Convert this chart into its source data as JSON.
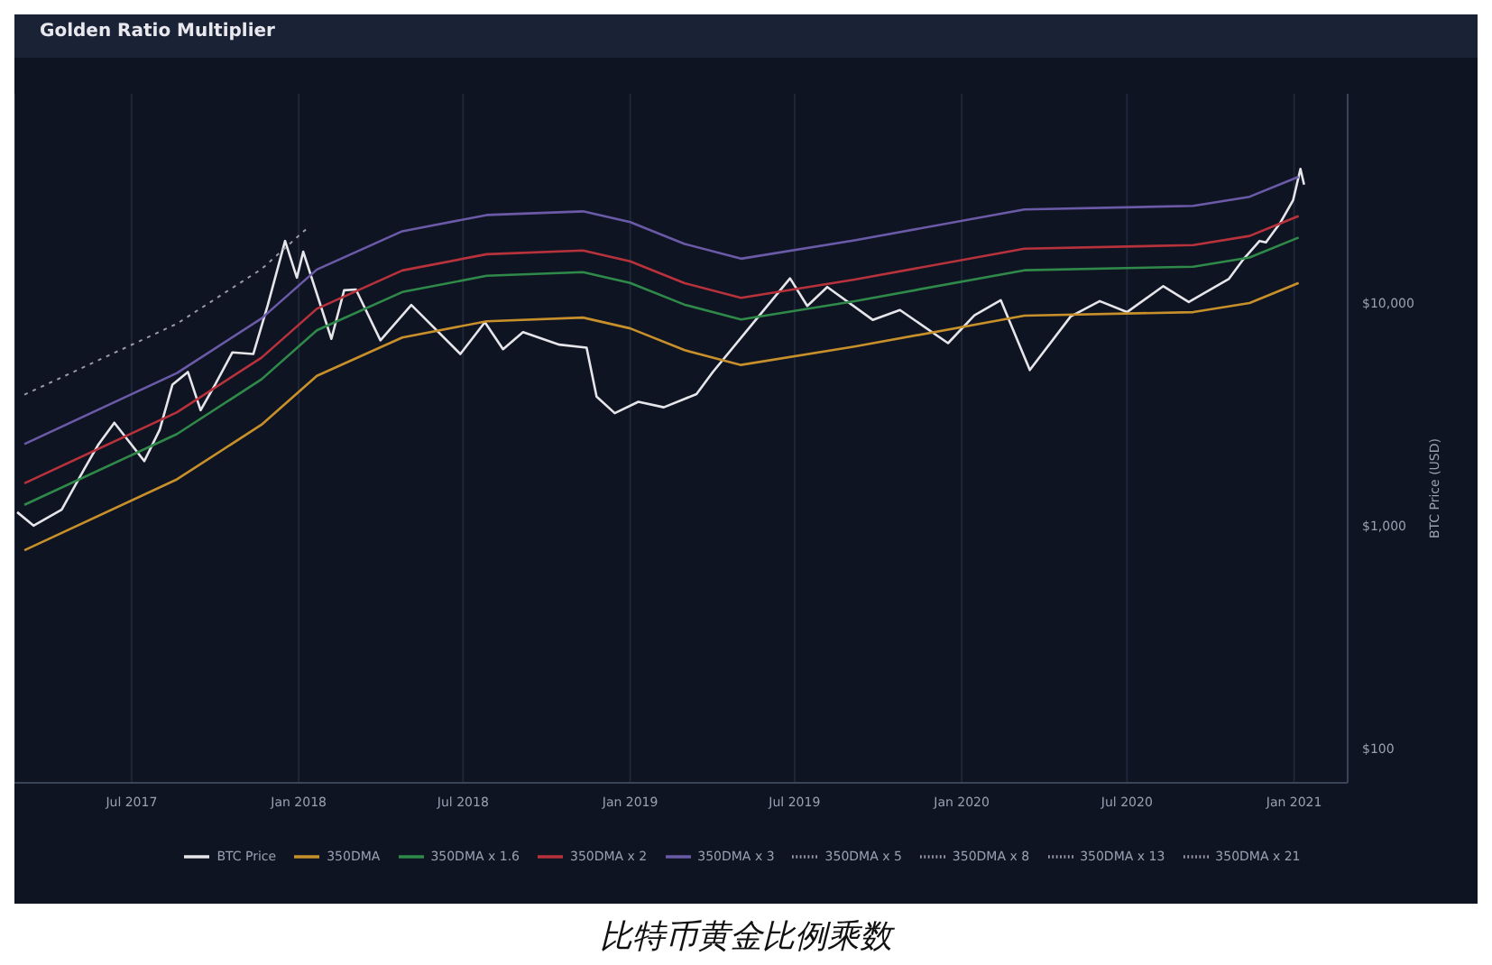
{
  "chart_data": {
    "type": "line",
    "title": "Golden Ratio Multiplier",
    "ylabel": "BTC Price (USD)",
    "log": "y",
    "grid": "x",
    "legend": "bottom",
    "marker": "none",
    "xlim": [
      "2017-02-22",
      "2021-03-01"
    ],
    "xticks": [
      {
        "value": "2017-07",
        "label": "Jul 2017"
      },
      {
        "value": "2018-01",
        "label": "Jan 2018"
      },
      {
        "value": "2018-07",
        "label": "Jul 2018"
      },
      {
        "value": "2019-01",
        "label": "Jan 2019"
      },
      {
        "value": "2019-07",
        "label": "Jul 2019"
      },
      {
        "value": "2020-01",
        "label": "Jan 2020"
      },
      {
        "value": "2020-07",
        "label": "Jul 2020"
      },
      {
        "value": "2021-01",
        "label": "Jan 2021"
      }
    ],
    "ylim": [
      70,
      87000
    ],
    "yticks": [
      {
        "value": 100,
        "label": "$100"
      },
      {
        "value": 1000,
        "label": "$1,000"
      },
      {
        "value": 10000,
        "label": "$10,000"
      }
    ],
    "annotations": [
      "比特币黄金比例乘数"
    ],
    "series": [
      {
        "name": "BTC Price",
        "color": "#e6e6ea",
        "line_style": "solid",
        "x": [
          "2017-02-25",
          "2017-03-15",
          "2017-04-15",
          "2017-05-10",
          "2017-05-25",
          "2017-06-12",
          "2017-07-15",
          "2017-08-01",
          "2017-08-15",
          "2017-09-01",
          "2017-09-15",
          "2017-10-01",
          "2017-10-20",
          "2017-11-12",
          "2017-11-28",
          "2017-12-17",
          "2017-12-30",
          "2018-01-06",
          "2018-02-06",
          "2018-02-20",
          "2018-03-05",
          "2018-04-01",
          "2018-05-05",
          "2018-06-28",
          "2018-07-25",
          "2018-08-14",
          "2018-09-05",
          "2018-10-15",
          "2018-11-14",
          "2018-11-25",
          "2018-12-15",
          "2019-01-10",
          "2019-02-07",
          "2019-03-15",
          "2019-04-02",
          "2019-05-15",
          "2019-06-26",
          "2019-07-15",
          "2019-08-06",
          "2019-09-25",
          "2019-10-25",
          "2019-12-17",
          "2020-01-15",
          "2020-02-13",
          "2020-03-16",
          "2020-04-30",
          "2020-06-01",
          "2020-07-01",
          "2020-08-10",
          "2020-09-07",
          "2020-10-21",
          "2020-11-05",
          "2020-11-24",
          "2020-12-01",
          "2020-12-17",
          "2020-12-31",
          "2021-01-08",
          "2021-01-12"
        ],
        "values": [
          1150,
          1000,
          1180,
          1800,
          2300,
          2900,
          1950,
          2700,
          4300,
          4900,
          3300,
          4300,
          6000,
          5900,
          9800,
          19000,
          13000,
          17000,
          6900,
          11400,
          11500,
          6800,
          9800,
          5900,
          8200,
          6200,
          7400,
          6500,
          6300,
          3800,
          3200,
          3600,
          3400,
          3900,
          4900,
          8000,
          12900,
          9700,
          11800,
          8400,
          9300,
          6600,
          8800,
          10300,
          5000,
          8700,
          10200,
          9100,
          11900,
          10100,
          12800,
          15500,
          19000,
          18700,
          23000,
          29000,
          40000,
          34000
        ]
      },
      {
        "name": "350DMA",
        "color": "#c8902a",
        "line_style": "solid",
        "x": [
          "2017-03-05",
          "2017-08-20",
          "2017-11-21",
          "2018-01-21",
          "2018-04-25",
          "2018-07-27",
          "2018-11-10",
          "2019-01-01",
          "2019-03-02",
          "2019-05-03",
          "2019-09-05",
          "2020-03-10",
          "2020-09-12",
          "2020-11-13",
          "2021-01-06"
        ],
        "values": [
          775,
          1615,
          2840,
          4710,
          7000,
          8280,
          8600,
          7690,
          6140,
          5270,
          6370,
          8770,
          9100,
          10000,
          12300
        ]
      },
      {
        "name": "350DMA x 1.6",
        "color": "#2f8a4a",
        "line_style": "solid",
        "x": [
          "2017-03-05",
          "2017-08-20",
          "2017-11-21",
          "2018-01-21",
          "2018-04-25",
          "2018-07-27",
          "2018-11-10",
          "2019-01-01",
          "2019-03-02",
          "2019-05-03",
          "2019-09-05",
          "2020-03-10",
          "2020-09-12",
          "2020-11-13",
          "2021-01-06"
        ],
        "values": [
          1240,
          2580,
          4540,
          7540,
          11200,
          13250,
          13760,
          12300,
          9820,
          8430,
          10190,
          14030,
          14560,
          16000,
          19680
        ]
      },
      {
        "name": "350DMA x 2",
        "color": "#b8323c",
        "line_style": "solid",
        "x": [
          "2017-03-05",
          "2017-08-20",
          "2017-11-21",
          "2018-01-21",
          "2018-04-25",
          "2018-07-27",
          "2018-11-10",
          "2019-01-01",
          "2019-03-02",
          "2019-05-03",
          "2019-09-05",
          "2020-03-10",
          "2020-09-12",
          "2020-11-13",
          "2021-01-06"
        ],
        "values": [
          1550,
          3230,
          5680,
          9420,
          14000,
          16560,
          17200,
          15380,
          12280,
          10540,
          12740,
          17540,
          18200,
          20000,
          24600
        ]
      },
      {
        "name": "350DMA x 3",
        "color": "#6a5aa8",
        "line_style": "solid",
        "x": [
          "2017-03-05",
          "2017-08-20",
          "2017-11-21",
          "2018-01-21",
          "2018-04-25",
          "2018-07-27",
          "2018-11-10",
          "2019-01-01",
          "2019-03-02",
          "2019-05-03",
          "2019-09-05",
          "2020-03-10",
          "2020-09-12",
          "2020-11-13",
          "2021-01-06"
        ],
        "values": [
          2325,
          4845,
          8520,
          14130,
          21000,
          24840,
          25800,
          23070,
          18420,
          15810,
          19110,
          26310,
          27300,
          30000,
          36900
        ]
      },
      {
        "name": "350DMA x 5",
        "color": "#9a9aa8",
        "line_style": "dotted",
        "x": [
          "2017-03-05",
          "2017-08-20",
          "2017-11-21",
          "2018-01-10"
        ],
        "values": [
          3875,
          8075,
          14200,
          21600
        ]
      },
      {
        "name": "350DMA x 8",
        "color": "#9a9aa8",
        "line_style": "dotted"
      },
      {
        "name": "350DMA x 13",
        "color": "#9a9aa8",
        "line_style": "dotted"
      },
      {
        "name": "350DMA x 21",
        "color": "#9a9aa8",
        "line_style": "dotted"
      }
    ]
  }
}
